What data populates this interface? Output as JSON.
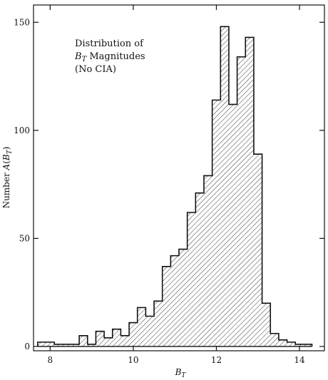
{
  "chart_data": {
    "type": "bar",
    "title": "",
    "xlabel": {
      "main": "B",
      "sub": "T"
    },
    "ylabel": {
      "prefix": "Number ",
      "func": "A",
      "paren_open": "(",
      "var": "B",
      "sub": "T",
      "paren_close": ")"
    },
    "annotation": {
      "line1": "Distribution of",
      "line2_main": "B",
      "line2_sub": "T",
      "line2_rest": " Magnitudes",
      "line3": "(No CIA)"
    },
    "xlim": [
      7.6,
      14.6
    ],
    "ylim": [
      -2,
      158
    ],
    "x_ticks": [
      {
        "value": 8,
        "label": "8"
      },
      {
        "value": 10,
        "label": "10"
      },
      {
        "value": 12,
        "label": "12"
      },
      {
        "value": 14,
        "label": "14"
      }
    ],
    "y_ticks": [
      {
        "value": 0,
        "label": "0"
      },
      {
        "value": 50,
        "label": "50"
      },
      {
        "value": 100,
        "label": "100"
      },
      {
        "value": 150,
        "label": "150"
      }
    ],
    "bin_width": 0.2,
    "bins": [
      {
        "x": 7.8,
        "count": 2
      },
      {
        "x": 8.0,
        "count": 2
      },
      {
        "x": 8.2,
        "count": 1
      },
      {
        "x": 8.4,
        "count": 1
      },
      {
        "x": 8.6,
        "count": 1
      },
      {
        "x": 8.8,
        "count": 5
      },
      {
        "x": 9.0,
        "count": 1
      },
      {
        "x": 9.2,
        "count": 7
      },
      {
        "x": 9.4,
        "count": 4
      },
      {
        "x": 9.6,
        "count": 8
      },
      {
        "x": 9.8,
        "count": 5
      },
      {
        "x": 10.0,
        "count": 11
      },
      {
        "x": 10.2,
        "count": 18
      },
      {
        "x": 10.4,
        "count": 14
      },
      {
        "x": 10.6,
        "count": 21
      },
      {
        "x": 10.8,
        "count": 37
      },
      {
        "x": 11.0,
        "count": 42
      },
      {
        "x": 11.2,
        "count": 45
      },
      {
        "x": 11.4,
        "count": 62
      },
      {
        "x": 11.6,
        "count": 71
      },
      {
        "x": 11.8,
        "count": 79
      },
      {
        "x": 12.0,
        "count": 114
      },
      {
        "x": 12.2,
        "count": 148
      },
      {
        "x": 12.4,
        "count": 112
      },
      {
        "x": 12.6,
        "count": 134
      },
      {
        "x": 12.8,
        "count": 143
      },
      {
        "x": 13.0,
        "count": 89
      },
      {
        "x": 13.2,
        "count": 20
      },
      {
        "x": 13.4,
        "count": 6
      },
      {
        "x": 13.6,
        "count": 3
      },
      {
        "x": 13.8,
        "count": 2
      },
      {
        "x": 14.0,
        "count": 1
      },
      {
        "x": 14.2,
        "count": 1
      }
    ],
    "grid": false,
    "legend": "none",
    "fill_pattern": "diagonal-hatch",
    "colors": {
      "stroke": "#111111",
      "hatch": "#222222",
      "background": "#ffffff"
    }
  }
}
